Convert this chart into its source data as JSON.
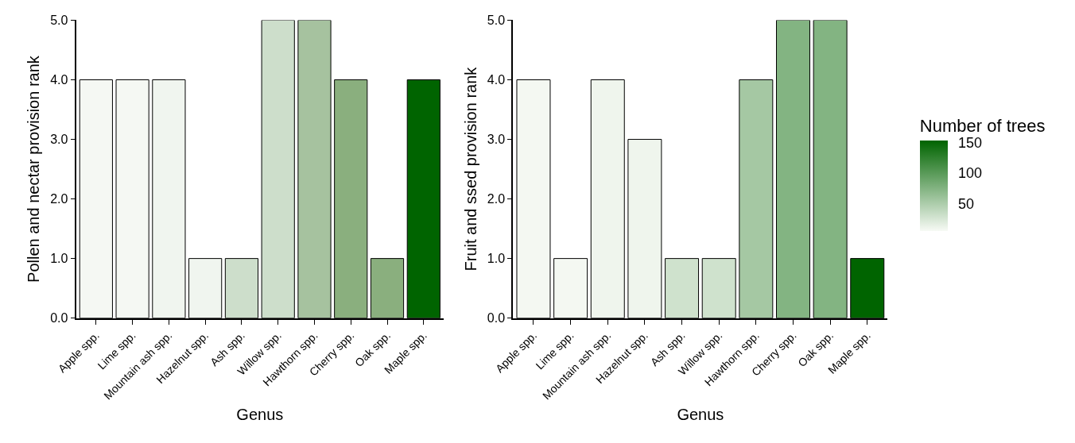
{
  "chart_data": [
    {
      "type": "bar",
      "xlabel": "Genus",
      "ylabel": "Pollen and nectar provision rank",
      "categories": [
        "Apple spp.",
        "Lime spp.",
        "Mountain ash spp.",
        "Hazelnut spp.",
        "Ash spp.",
        "Willow spp.",
        "Hawthorn spp.",
        "Cherry spp.",
        "Oak spp.",
        "Maple spp."
      ],
      "values": [
        4,
        4,
        4,
        1,
        1,
        5,
        5,
        4,
        1,
        4
      ],
      "colors": [
        "#f5f8f3",
        "#f5f8f3",
        "#f0f5ef",
        "#f0f5ef",
        "#cddecb",
        "#cddecb",
        "#a6c29f",
        "#8aaf7e",
        "#8aaf7e",
        "#006400"
      ],
      "ylim": [
        0,
        5
      ],
      "yticks": [
        {
          "value": 0,
          "label": "0.0"
        },
        {
          "value": 1,
          "label": "1.0"
        },
        {
          "value": 2,
          "label": "2.0"
        },
        {
          "value": 3,
          "label": "3.0"
        },
        {
          "value": 4,
          "label": "4.0"
        },
        {
          "value": 5,
          "label": "5.0"
        }
      ]
    },
    {
      "type": "bar",
      "xlabel": "Genus",
      "ylabel": "Fruit and ssed provision rank",
      "categories": [
        "Apple spp.",
        "Lime spp.",
        "Mountain ash spp.",
        "Hazelnut spp.",
        "Ash spp.",
        "Willow spp.",
        "Hawthorn spp.",
        "Cherry spp.",
        "Oak spp.",
        "Maple spp."
      ],
      "values": [
        4,
        1,
        4,
        3,
        1,
        1,
        4,
        5,
        5,
        1
      ],
      "cvalues": [
        8,
        8,
        11,
        11,
        30,
        30,
        55,
        75,
        75,
        153
      ],
      "clabel": "Number of trees",
      "clim": [
        6,
        153
      ],
      "cticks": [
        50,
        100,
        150
      ],
      "ylim": [
        0,
        5
      ],
      "yticks": [
        {
          "value": 0,
          "label": "0.0"
        },
        {
          "value": 1,
          "label": "1.0"
        },
        {
          "value": 2,
          "label": "2.0"
        },
        {
          "value": 3,
          "label": "3.0"
        },
        {
          "value": 4,
          "label": "4.0"
        },
        {
          "value": 5,
          "label": "5.0"
        }
      ]
    }
  ]
}
